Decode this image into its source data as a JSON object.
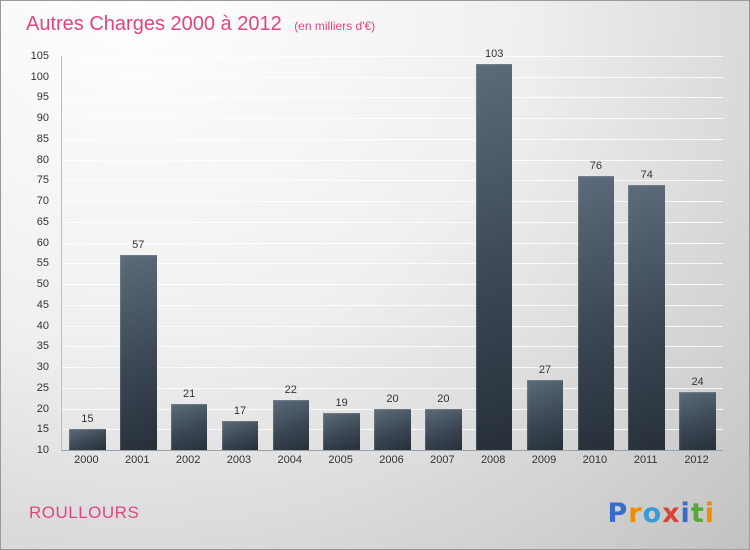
{
  "header": {
    "title": "Autres Charges 2000 à 2012",
    "subtitle": "(en milliers d'€)"
  },
  "chart_data": {
    "type": "bar",
    "categories": [
      "2000",
      "2001",
      "2002",
      "2003",
      "2004",
      "2005",
      "2006",
      "2007",
      "2008",
      "2009",
      "2010",
      "2011",
      "2012"
    ],
    "values": [
      15,
      57,
      21,
      17,
      22,
      19,
      20,
      20,
      103,
      27,
      76,
      74,
      24
    ],
    "title": "Autres Charges 2000 à 2012",
    "subtitle": "(en milliers d'€)",
    "xlabel": "",
    "ylabel": "",
    "ylim": [
      10,
      105
    ],
    "ytick_step": 5,
    "grid": true,
    "legend": "none",
    "bar_color_top": "#5d6c7a",
    "bar_color_bottom": "#273039"
  },
  "footer": {
    "company": "ROULLOURS",
    "logo_letters": [
      {
        "char": "P",
        "color": "#3a6bc9"
      },
      {
        "char": "r",
        "color": "#f08c00"
      },
      {
        "char": "o",
        "color": "#3a9bd5"
      },
      {
        "char": "x",
        "color": "#d94436"
      },
      {
        "char": "i",
        "color": "#3a6bc9"
      },
      {
        "char": "t",
        "color": "#57a639"
      },
      {
        "char": "i",
        "color": "#f08c00"
      }
    ]
  },
  "colors": {
    "accent_pink": "#e0457f",
    "tick_text": "#333333",
    "gridline": "#ffffff"
  }
}
